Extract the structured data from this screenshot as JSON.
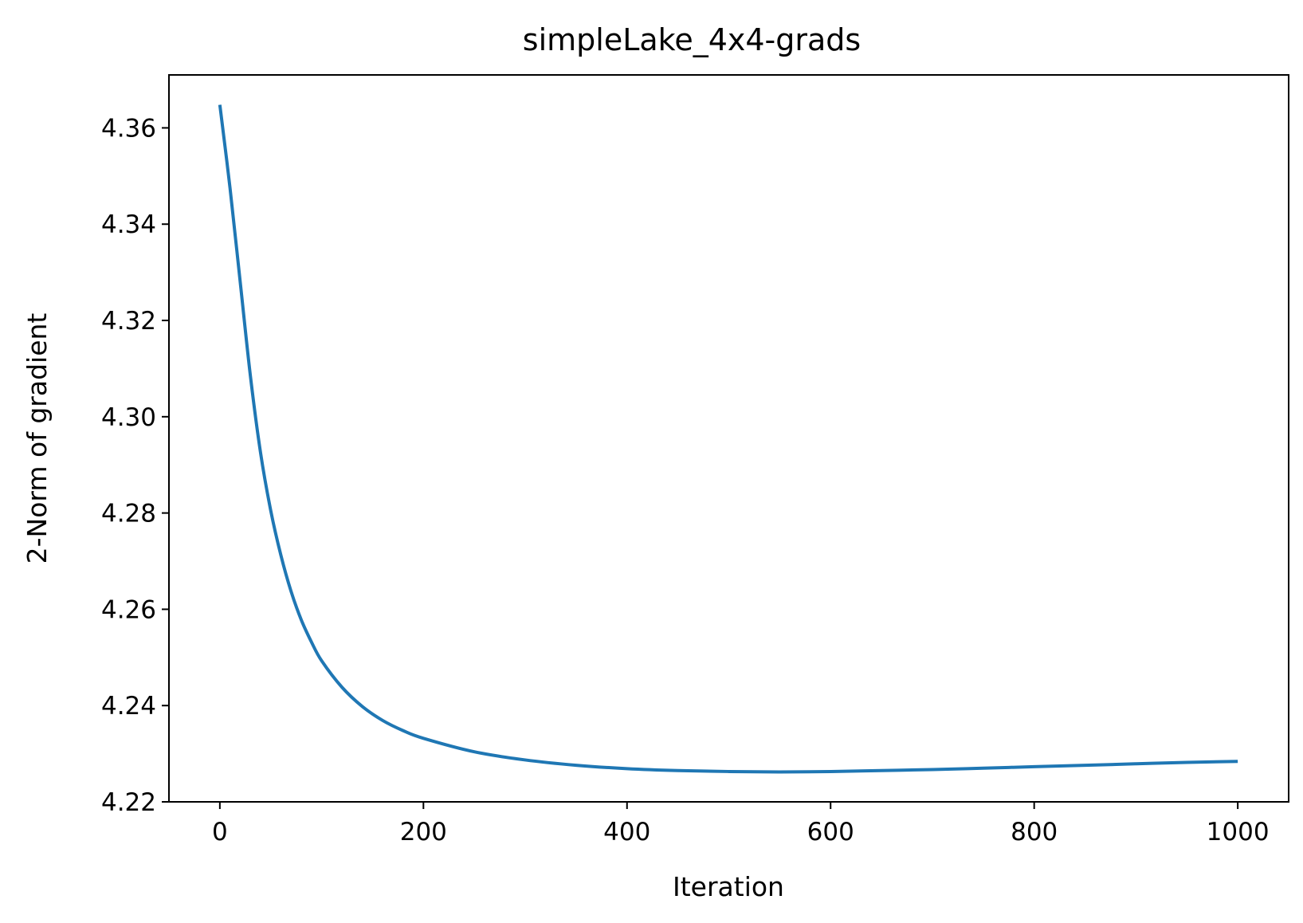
{
  "chart_data": {
    "type": "line",
    "title": "simpleLake_4x4-grads",
    "xlabel": "Iteration",
    "ylabel": "2-Norm of gradient",
    "xlim": [
      -50,
      1050
    ],
    "ylim": [
      4.22,
      4.371
    ],
    "xticks": [
      0,
      200,
      400,
      600,
      800,
      1000
    ],
    "xtick_labels": [
      "0",
      "200",
      "400",
      "600",
      "800",
      "1000"
    ],
    "yticks": [
      4.22,
      4.24,
      4.26,
      4.28,
      4.3,
      4.32,
      4.34,
      4.36
    ],
    "ytick_labels": [
      "4.22",
      "4.24",
      "4.26",
      "4.28",
      "4.30",
      "4.32",
      "4.34",
      "4.36"
    ],
    "grid": false,
    "series": [
      {
        "color": "#1f77b4",
        "x": [
          0,
          10,
          20,
          30,
          40,
          50,
          60,
          70,
          80,
          90,
          100,
          120,
          140,
          160,
          180,
          200,
          250,
          300,
          350,
          400,
          450,
          500,
          550,
          600,
          650,
          700,
          750,
          800,
          850,
          900,
          950,
          1000
        ],
        "y": [
          4.3648,
          4.3475,
          4.328,
          4.3085,
          4.2925,
          4.2805,
          4.2712,
          4.2637,
          4.2578,
          4.2532,
          4.2493,
          4.2438,
          4.2398,
          4.2369,
          4.2348,
          4.2332,
          4.2304,
          4.2287,
          4.2276,
          4.2269,
          4.2265,
          4.2263,
          4.2262,
          4.2263,
          4.2265,
          4.2267,
          4.227,
          4.2273,
          4.2276,
          4.2279,
          4.2282,
          4.2284
        ]
      }
    ]
  }
}
